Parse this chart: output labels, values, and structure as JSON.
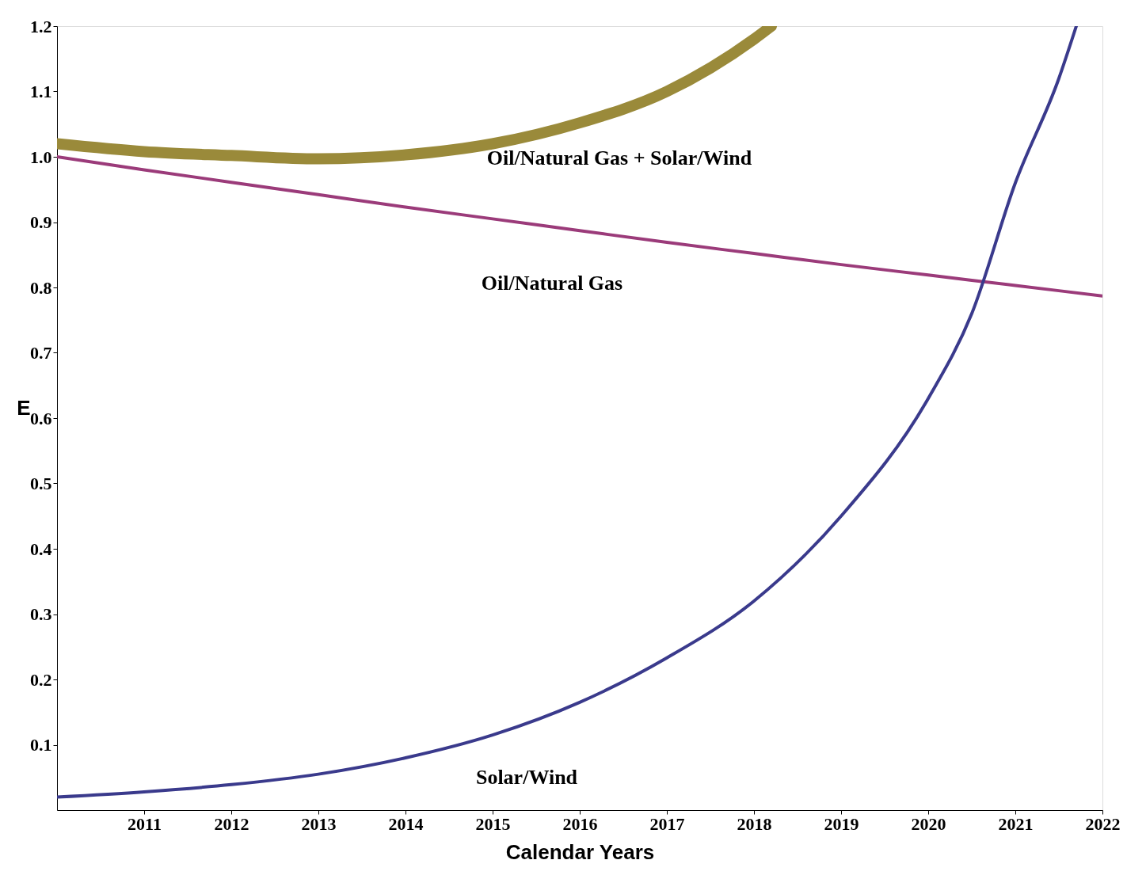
{
  "chart_data": {
    "type": "line",
    "xlabel": "Calendar Years",
    "ylabel": "E",
    "xlim": [
      2010,
      2022
    ],
    "xticks": [
      2011,
      2012,
      2013,
      2014,
      2015,
      2016,
      2017,
      2018,
      2019,
      2020,
      2021,
      2022
    ],
    "ylim": [
      0,
      1.2
    ],
    "yticks": [
      0.1,
      0.2,
      0.3,
      0.4,
      0.5,
      0.6,
      0.7,
      0.8,
      0.9,
      {
        "value": 1.0,
        "label": "1.0"
      },
      1.1,
      1.2
    ],
    "grid": false,
    "marker": "none",
    "line_style": "solid",
    "series": [
      {
        "name": "Oil/Natural Gas + Solar/Wind",
        "color": "#9a8a3a",
        "x": [
          2010,
          2011,
          2012,
          2013,
          2014,
          2015,
          2016,
          2017,
          2018,
          2018.2
        ],
        "values": [
          1.02,
          1.008,
          1.002,
          0.997,
          1.003,
          1.02,
          1.052,
          1.1,
          1.18,
          1.2
        ]
      },
      {
        "name": "Oil/Natural Gas",
        "color": "#9b3b7a",
        "x": [
          2010,
          2011,
          2012,
          2013,
          2014,
          2015,
          2016,
          2017,
          2018,
          2019,
          2020,
          2021,
          2022
        ],
        "values": [
          1.0,
          0.98,
          0.961,
          0.942,
          0.923,
          0.905,
          0.887,
          0.869,
          0.852,
          0.835,
          0.819,
          0.803,
          0.787
        ]
      },
      {
        "name": "Solar/Wind",
        "color": "#3a3a8c",
        "x": [
          2010,
          2011,
          2012,
          2013,
          2014,
          2015,
          2016,
          2017,
          2018,
          2019,
          2020,
          2020.5,
          2021,
          2021.5,
          2021.7
        ],
        "values": [
          0.02,
          0.028,
          0.039,
          0.055,
          0.08,
          0.115,
          0.165,
          0.233,
          0.32,
          0.45,
          0.63,
          0.76,
          0.96,
          1.12,
          1.2
        ]
      }
    ]
  }
}
